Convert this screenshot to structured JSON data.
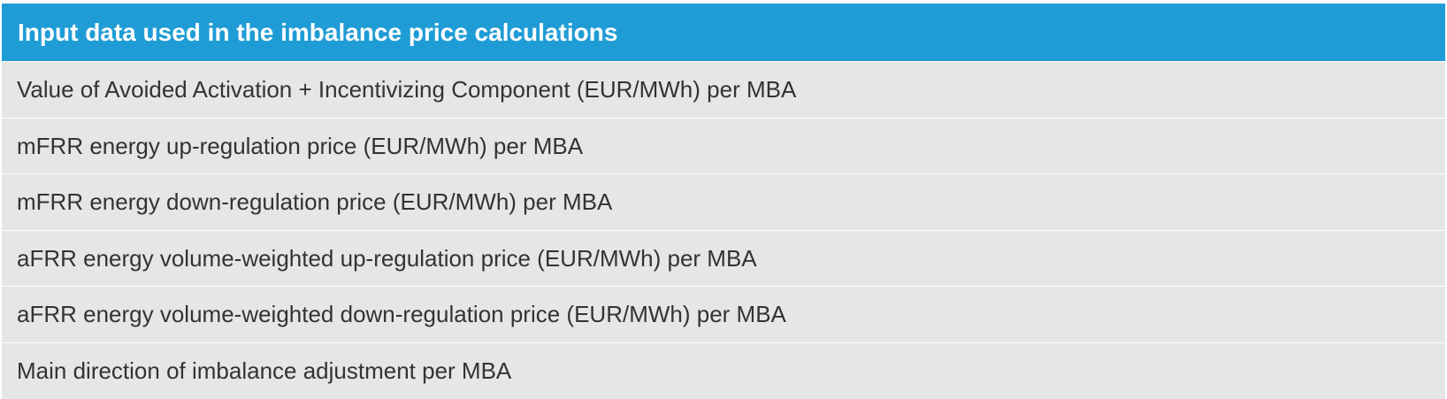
{
  "table": {
    "title": "Input data used in the imbalance price calculations",
    "rows": [
      "Value of Avoided Activation + Incentivizing Component (EUR/MWh) per MBA",
      "mFRR energy up-regulation price (EUR/MWh) per MBA",
      "mFRR energy down-regulation price (EUR/MWh) per MBA",
      "aFRR energy volume-weighted up-regulation price (EUR/MWh) per MBA",
      "aFRR energy volume-weighted down-regulation price (EUR/MWh) per MBA",
      "Main direction of imbalance adjustment per MBA"
    ]
  }
}
